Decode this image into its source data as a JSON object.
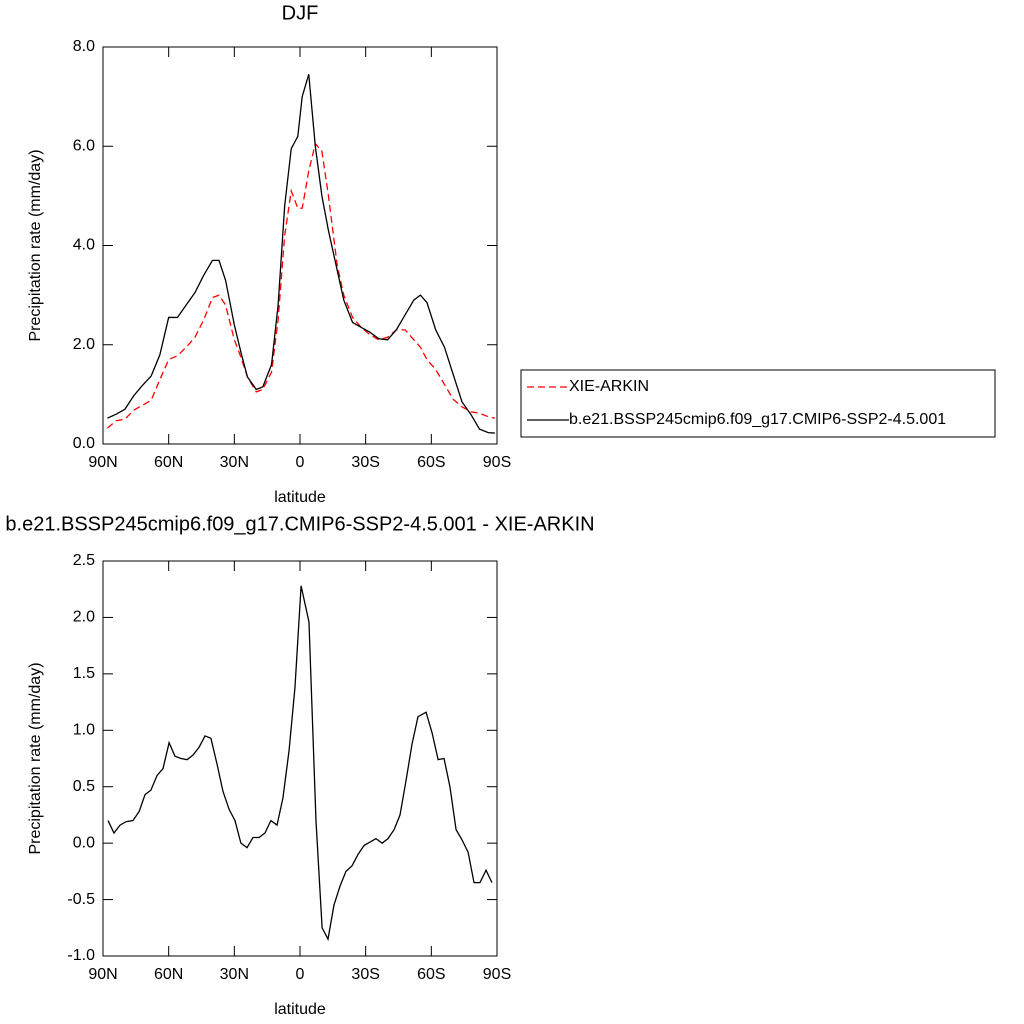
{
  "chart_data": [
    {
      "type": "line",
      "title": "DJF",
      "x_label": "latitude",
      "y_label": "Precipitation rate (mm/day)",
      "x": [
        88,
        84,
        80,
        76,
        72,
        68,
        64,
        60,
        56,
        52,
        48,
        44,
        40,
        37,
        34,
        30,
        27,
        24,
        20,
        17,
        13,
        10,
        7,
        4,
        1,
        -1,
        -4,
        -7,
        -10,
        -13,
        -17,
        -20,
        -24,
        -28,
        -32,
        -36,
        -40,
        -44,
        -48,
        -52,
        -55,
        -58,
        -62,
        -66,
        -70,
        -74,
        -78,
        -82,
        -86,
        -89
      ],
      "series": [
        {
          "name": "XIE-ARKIN",
          "color": "#ff0000",
          "dash": true,
          "values": [
            0.32,
            0.47,
            0.5,
            0.68,
            0.78,
            0.88,
            1.3,
            1.7,
            1.78,
            1.95,
            2.15,
            2.5,
            2.95,
            3.0,
            2.8,
            2.1,
            1.75,
            1.35,
            1.05,
            1.1,
            1.45,
            2.5,
            4.2,
            5.1,
            4.75,
            4.75,
            5.5,
            6.05,
            5.9,
            5.0,
            3.6,
            3.0,
            2.55,
            2.35,
            2.2,
            2.1,
            2.15,
            2.3,
            2.3,
            2.1,
            1.95,
            1.7,
            1.5,
            1.2,
            0.9,
            0.75,
            0.65,
            0.62,
            0.55,
            0.52
          ]
        },
        {
          "name": "b.e21.BSSP245cmip6.f09_g17.CMIP6-SSP2-4.5.001",
          "color": "#000000",
          "dash": false,
          "values": [
            0.52,
            0.6,
            0.7,
            0.97,
            1.18,
            1.37,
            1.8,
            2.55,
            2.55,
            2.8,
            3.05,
            3.4,
            3.7,
            3.7,
            3.3,
            2.4,
            1.85,
            1.35,
            1.1,
            1.15,
            1.6,
            2.8,
            4.8,
            5.95,
            6.2,
            7.0,
            7.45,
            6.0,
            5.0,
            4.3,
            3.5,
            2.9,
            2.45,
            2.35,
            2.25,
            2.12,
            2.1,
            2.3,
            2.6,
            2.9,
            3.0,
            2.85,
            2.3,
            1.95,
            1.4,
            0.85,
            0.6,
            0.3,
            0.23,
            0.22
          ]
        }
      ],
      "xlim": [
        90,
        -90
      ],
      "xticks": [
        {
          "value": 90,
          "label": "90N"
        },
        {
          "value": 60,
          "label": "60N"
        },
        {
          "value": 30,
          "label": "30N"
        },
        0,
        {
          "value": -30,
          "label": "30S"
        },
        {
          "value": -60,
          "label": "60S"
        },
        {
          "value": -90,
          "label": "90S"
        }
      ],
      "ylim": [
        0,
        8
      ],
      "yticks": [
        {
          "value": 0,
          "label": "0.0"
        },
        {
          "value": 2,
          "label": "2.0"
        },
        {
          "value": 4,
          "label": "4.0"
        },
        {
          "value": 6,
          "label": "6.0"
        },
        {
          "value": 8,
          "label": "8.0"
        }
      ],
      "legend": "right"
    },
    {
      "type": "line",
      "title": "b.e21.BSSP245cmip6.f09_g17.CMIP6-SSP2-4.5.001 - XIE-ARKIN",
      "x_label": "latitude",
      "y_label": "Precipitation rate (mm/day)",
      "x": [
        87.7,
        85.0,
        82.2,
        79.5,
        76.3,
        73.5,
        70.8,
        68.1,
        65.3,
        62.6,
        59.8,
        57.1,
        54.4,
        51.6,
        48.9,
        46.1,
        43.4,
        40.7,
        37.9,
        35.2,
        32.4,
        29.7,
        27.0,
        24.2,
        21.5,
        18.7,
        16.0,
        13.3,
        10.5,
        7.8,
        5.0,
        2.3,
        -0.5,
        -4.1,
        -7.3,
        -10.1,
        -12.8,
        -15.5,
        -18.3,
        -21.0,
        -23.8,
        -26.5,
        -29.3,
        -32.0,
        -34.7,
        -37.5,
        -40.2,
        -43.0,
        -45.7,
        -48.4,
        -51.2,
        -53.9,
        -57.6,
        -60.3,
        -63.1,
        -65.8,
        -68.5,
        -71.3,
        -74.0,
        -76.8,
        -79.5,
        -82.2,
        -85.0,
        -87.7
      ],
      "series": [
        {
          "color": "#000000",
          "dash": false,
          "values": [
            0.2,
            0.09,
            0.16,
            0.19,
            0.2,
            0.28,
            0.43,
            0.47,
            0.6,
            0.66,
            0.89,
            0.77,
            0.75,
            0.74,
            0.78,
            0.85,
            0.95,
            0.93,
            0.7,
            0.46,
            0.3,
            0.2,
            0.0,
            -0.04,
            0.05,
            0.05,
            0.09,
            0.2,
            0.16,
            0.4,
            0.82,
            1.38,
            2.28,
            1.96,
            0.2,
            -0.75,
            -0.85,
            -0.55,
            -0.38,
            -0.25,
            -0.2,
            -0.1,
            -0.02,
            0.01,
            0.04,
            0.0,
            0.04,
            0.12,
            0.25,
            0.55,
            0.88,
            1.12,
            1.16,
            0.98,
            0.74,
            0.75,
            0.5,
            0.12,
            0.03,
            -0.08,
            -0.35,
            -0.35,
            -0.24,
            -0.35
          ]
        }
      ],
      "xlim": [
        90,
        -90
      ],
      "xticks": [
        {
          "value": 90,
          "label": "90N"
        },
        {
          "value": 60,
          "label": "60N"
        },
        {
          "value": 30,
          "label": "30N"
        },
        0,
        {
          "value": -30,
          "label": "30S"
        },
        {
          "value": -60,
          "label": "60S"
        },
        {
          "value": -90,
          "label": "90S"
        }
      ],
      "ylim": [
        -1,
        2.5
      ],
      "yticks": [
        {
          "value": -1,
          "label": "-1.0"
        },
        -0.5,
        {
          "value": 0,
          "label": "0.0"
        },
        0.5,
        {
          "value": 1,
          "label": "1.0"
        },
        1.5,
        {
          "value": 2,
          "label": "2.0"
        },
        2.5
      ]
    }
  ]
}
